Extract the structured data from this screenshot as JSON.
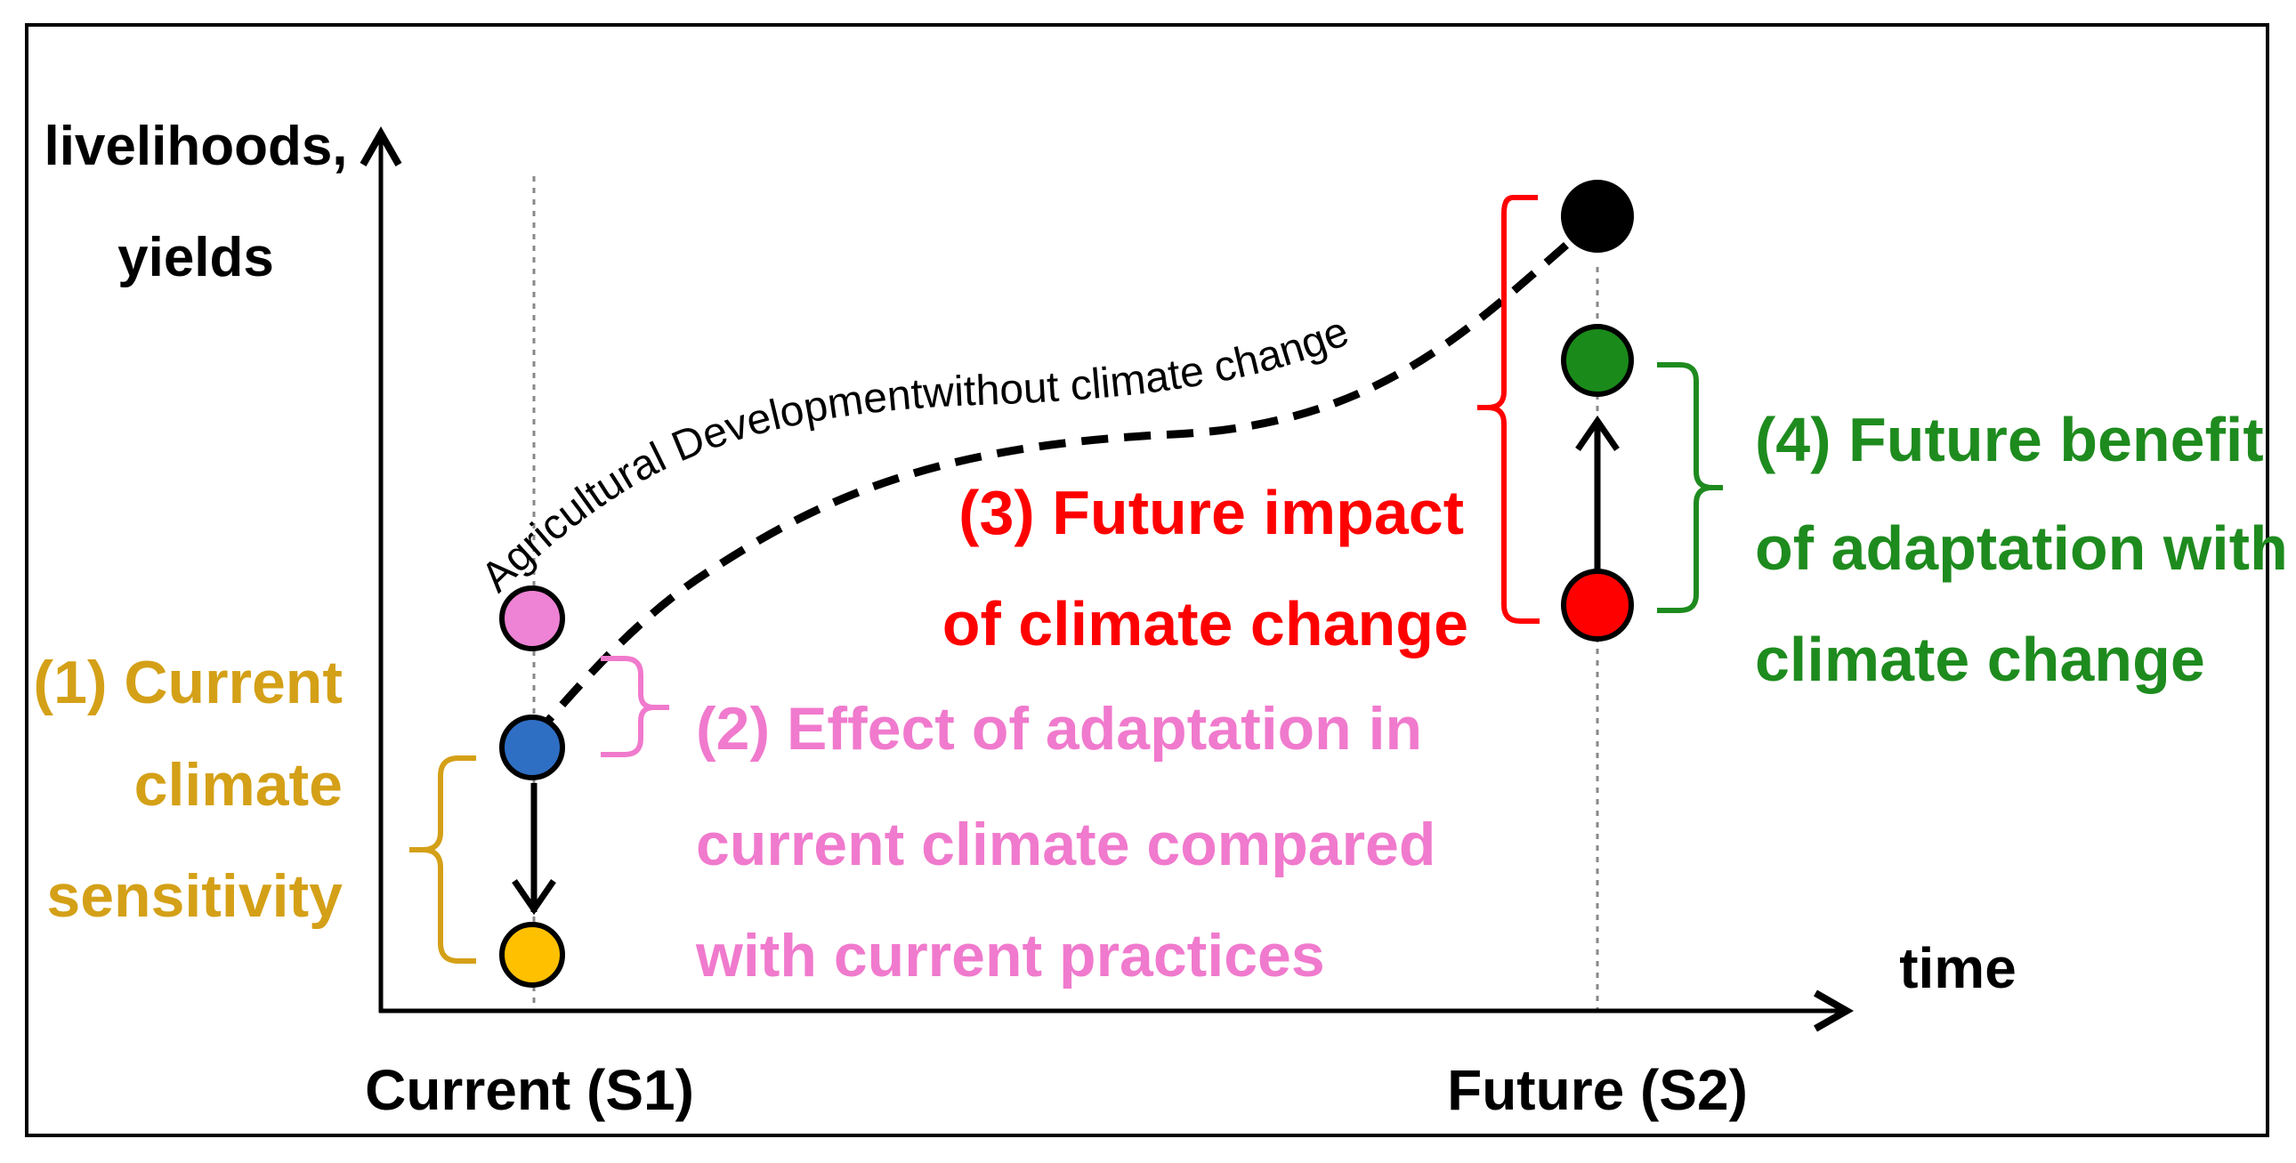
{
  "axes": {
    "y_label_line1": "livelihoods,",
    "y_label_line2": "yields",
    "x_label": "time",
    "x_tick_current": "Current (S1)",
    "x_tick_future": "Future (S2)"
  },
  "curve_label": "Agricultural Developmentwithout climate change",
  "annotations": {
    "a1": {
      "lines": [
        "(1) Current",
        "climate",
        "sensitivity"
      ],
      "color": "#D4A017"
    },
    "a2": {
      "lines": [
        "(2) Effect of adaptation in",
        "current climate compared",
        "with current practices"
      ],
      "color": "#F07ACD"
    },
    "a3": {
      "lines": [
        "(3) Future impact",
        "of climate change"
      ],
      "color": "#FF0000"
    },
    "a4": {
      "lines": [
        "(4) Future benefit",
        "of adaptation with",
        "climate change"
      ],
      "color": "#1E8B1E"
    }
  },
  "points": {
    "current_pink": {
      "color": "#EE82D4",
      "time": "Current (S1)"
    },
    "current_blue": {
      "color": "#2E6FC4",
      "time": "Current (S1)"
    },
    "current_yellow": {
      "color": "#FFC000",
      "time": "Current (S1)"
    },
    "future_black": {
      "color": "#000000",
      "time": "Future (S2)"
    },
    "future_green": {
      "color": "#1A8A1A",
      "time": "Future (S2)"
    },
    "future_red": {
      "color": "#FF0000",
      "time": "Future (S2)"
    }
  }
}
